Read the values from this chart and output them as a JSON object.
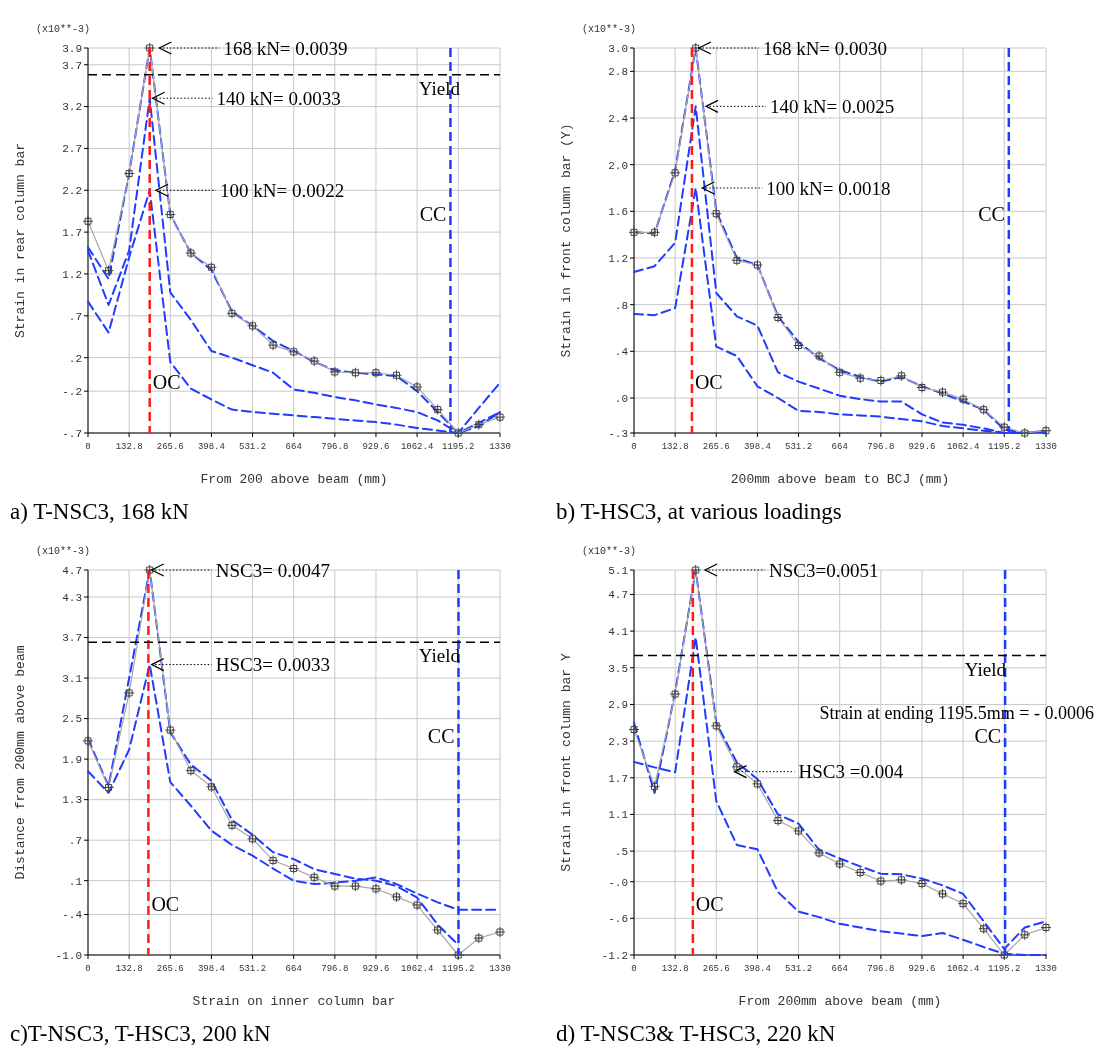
{
  "chart_data": [
    {
      "type": "line",
      "title": "a) T-NSC3, 168 kN",
      "xlabel": "From 200 above beam (mm)",
      "ylabel": "Strain in rear column bar",
      "x": [
        0,
        66.4,
        132.8,
        199.2,
        265.6,
        332,
        398.4,
        464.8,
        531.2,
        597.6,
        664,
        730.4,
        796.8,
        863.2,
        929.6,
        996,
        1062.4,
        1128.8,
        1195.2,
        1261.6,
        1330
      ],
      "xlim": [
        0,
        1330
      ],
      "xticks": [
        0,
        132.8,
        265.6,
        398.4,
        531.2,
        664,
        796.8,
        929.6,
        1062.4,
        1195.2,
        1330
      ],
      "ylim": [
        -0.7,
        3.9
      ],
      "yticks": [
        {
          "value": -0.7,
          "label": "-.7"
        },
        {
          "value": -0.2,
          "label": "-.2"
        },
        {
          "value": 0.2,
          "label": ".2"
        },
        {
          "value": 0.7,
          "label": ".7"
        },
        1.2,
        1.7,
        2.2,
        2.7,
        3.2,
        3.7,
        3.9
      ],
      "grid": true,
      "series": [
        {
          "color": "#1f3cff",
          "line_style": "dashed",
          "marker": "none",
          "values": [
            1.52,
            1.14,
            2.4,
            3.9,
            1.91,
            1.45,
            1.25,
            0.75,
            0.58,
            0.4,
            0.28,
            0.15,
            0.05,
            0.02,
            0.0,
            -0.02,
            -0.2,
            -0.45,
            -0.7,
            -0.62,
            -0.45
          ]
        },
        {
          "color": "#1f3cff",
          "line_style": "dashed",
          "marker": "none",
          "values": [
            1.48,
            0.83,
            1.48,
            3.3,
            0.98,
            0.65,
            0.28,
            0.2,
            0.11,
            0.02,
            -0.18,
            -0.22,
            -0.27,
            -0.31,
            -0.36,
            -0.4,
            -0.45,
            -0.55,
            -0.7,
            -0.4,
            -0.1
          ]
        },
        {
          "color": "#1f3cff",
          "line_style": "dashed",
          "marker": "none",
          "values": [
            0.87,
            0.5,
            1.4,
            2.2,
            0.15,
            -0.17,
            -0.3,
            -0.42,
            -0.45,
            -0.47,
            -0.49,
            -0.51,
            -0.53,
            -0.55,
            -0.57,
            -0.6,
            -0.64,
            -0.67,
            -0.7,
            -0.58,
            -0.45
          ]
        },
        {
          "color": "#a6a6a6",
          "line_style": "solid",
          "marker": "cross",
          "values": [
            1.83,
            1.24,
            2.4,
            3.9,
            1.91,
            1.45,
            1.28,
            0.73,
            0.58,
            0.35,
            0.27,
            0.16,
            0.03,
            0.02,
            0.02,
            -0.01,
            -0.15,
            -0.42,
            -0.7,
            -0.6,
            -0.51
          ]
        }
      ],
      "ref_lines": [
        {
          "axis": "x",
          "value": 199.2,
          "label": "OC",
          "color": "#ff1a1a",
          "line_style": "dashed"
        },
        {
          "axis": "x",
          "value": 1170,
          "label": "CC",
          "color": "#1f3cff",
          "line_style": "dashed"
        },
        {
          "axis": "y",
          "value": 3.58,
          "label": "Yield",
          "color": "#000000",
          "line_style": "dashed"
        }
      ],
      "annotations": [
        "(x10**-3)",
        {
          "text": "168 kN= 0.0039",
          "x": 224,
          "y": 3.9
        },
        {
          "text": "140 kN= 0.0033",
          "x": 202,
          "y": 3.3
        },
        {
          "text": "100 kN= 0.0022",
          "x": 213,
          "y": 2.2
        }
      ]
    },
    {
      "type": "line",
      "title": "b) T-HSC3, at various loadings",
      "xlabel": "200mm above beam to BCJ (mm)",
      "ylabel": "Strain in front column bar (Y)",
      "x": [
        0,
        66.4,
        132.8,
        199.2,
        265.6,
        332,
        398.4,
        464.8,
        531.2,
        597.6,
        664,
        730.4,
        796.8,
        863.2,
        929.6,
        996,
        1062.4,
        1128.8,
        1195.2,
        1261.6,
        1330
      ],
      "xlim": [
        0,
        1330
      ],
      "xticks": [
        0,
        132.8,
        265.6,
        398.4,
        531.2,
        664,
        796.8,
        929.6,
        1062.4,
        1195.2,
        1330
      ],
      "ylim": [
        -0.3,
        3.0
      ],
      "yticks": [
        {
          "value": -0.3,
          "label": "-.3"
        },
        {
          "value": 0,
          "label": ".0"
        },
        {
          "value": 0.4,
          "label": ".4"
        },
        {
          "value": 0.8,
          "label": ".8"
        },
        1.2,
        1.6,
        {
          "value": 2,
          "label": "2.0"
        },
        2.4,
        2.8,
        {
          "value": 3,
          "label": "3.0"
        }
      ],
      "grid": true,
      "series": [
        {
          "color": "#1f3cff",
          "line_style": "dashed",
          "marker": "none",
          "values": [
            1.42,
            1.41,
            1.95,
            3.0,
            1.6,
            1.2,
            1.14,
            0.7,
            0.48,
            0.34,
            0.24,
            0.18,
            0.14,
            0.18,
            0.1,
            0.04,
            -0.03,
            -0.1,
            -0.27,
            -0.3,
            -0.28
          ]
        },
        {
          "color": "#1f3cff",
          "line_style": "dashed",
          "marker": "none",
          "values": [
            1.08,
            1.13,
            1.33,
            2.5,
            0.9,
            0.7,
            0.62,
            0.22,
            0.14,
            0.08,
            0.02,
            -0.01,
            -0.03,
            -0.03,
            -0.14,
            -0.21,
            -0.23,
            -0.26,
            -0.3,
            -0.3,
            -0.29
          ]
        },
        {
          "color": "#1f3cff",
          "line_style": "dashed",
          "marker": "none",
          "values": [
            0.72,
            0.71,
            0.77,
            1.8,
            0.44,
            0.36,
            0.1,
            0.0,
            -0.11,
            -0.12,
            -0.14,
            -0.15,
            -0.16,
            -0.18,
            -0.2,
            -0.24,
            -0.26,
            -0.28,
            -0.3,
            -0.3,
            -0.29
          ]
        },
        {
          "color": "#a6a6a6",
          "line_style": "solid",
          "marker": "cross",
          "values": [
            1.42,
            1.42,
            1.93,
            3.0,
            1.58,
            1.18,
            1.14,
            0.69,
            0.45,
            0.36,
            0.22,
            0.17,
            0.15,
            0.19,
            0.09,
            0.05,
            -0.01,
            -0.1,
            -0.25,
            -0.3,
            -0.28
          ]
        }
      ],
      "ref_lines": [
        {
          "axis": "x",
          "value": 187,
          "label": "OC",
          "color": "#ff1a1a",
          "line_style": "dashed"
        },
        {
          "axis": "x",
          "value": 1210,
          "label": "CC",
          "color": "#1f3cff",
          "line_style": "dashed"
        }
      ],
      "annotations": [
        "(x10**-3)",
        {
          "text": "168 kN= 0.0030",
          "x": 203,
          "y": 3.0
        },
        {
          "text": "140 kN= 0.0025",
          "x": 226,
          "y": 2.5
        },
        {
          "text": "100 kN= 0.0018",
          "x": 214,
          "y": 1.8
        }
      ]
    },
    {
      "type": "line",
      "title": "c)T-NSC3, T-HSC3, 200 kN",
      "xlabel": "Strain on inner column bar",
      "ylabel": "Distance from 200mm above beam",
      "x": [
        0,
        66.4,
        132.8,
        199.2,
        265.6,
        332,
        398.4,
        464.8,
        531.2,
        597.6,
        664,
        730.4,
        796.8,
        863.2,
        929.6,
        996,
        1062.4,
        1128.8,
        1195.2,
        1261.6,
        1330
      ],
      "xlim": [
        0,
        1330
      ],
      "xticks": [
        0,
        132.8,
        265.6,
        398.4,
        531.2,
        664,
        796.8,
        929.6,
        1062.4,
        1195.2,
        1330
      ],
      "ylim": [
        -1.0,
        4.7
      ],
      "yticks": [
        {
          "value": -1,
          "label": "-1.0"
        },
        {
          "value": -0.4,
          "label": "-.4"
        },
        {
          "value": 0.1,
          "label": ".1"
        },
        {
          "value": 0.7,
          "label": ".7"
        },
        1.3,
        1.9,
        2.5,
        3.1,
        3.7,
        4.3,
        4.7
      ],
      "grid": true,
      "series": [
        {
          "color": "#1f3cff",
          "line_style": "dashed",
          "marker": "none",
          "values": [
            2.2,
            1.5,
            3.1,
            4.7,
            2.3,
            1.82,
            1.58,
            1.0,
            0.78,
            0.52,
            0.42,
            0.27,
            0.2,
            0.13,
            0.1,
            0.02,
            -0.15,
            -0.55,
            -0.85,
            null,
            null
          ]
        },
        {
          "color": "#1f3cff",
          "line_style": "dashed",
          "marker": "none",
          "values": [
            1.72,
            1.4,
            2.04,
            3.3,
            1.56,
            1.21,
            0.84,
            0.63,
            0.47,
            0.28,
            0.1,
            0.05,
            0.07,
            0.1,
            0.15,
            0.05,
            -0.09,
            -0.22,
            -0.33,
            -0.33,
            -0.33
          ]
        },
        {
          "color": "#a6a6a6",
          "line_style": "solid",
          "marker": "cross",
          "values": [
            2.17,
            1.48,
            2.88,
            4.7,
            2.33,
            1.73,
            1.49,
            0.92,
            0.72,
            0.4,
            0.28,
            0.15,
            0.02,
            0.02,
            -0.02,
            -0.14,
            -0.26,
            -0.63,
            -1.0,
            -0.75,
            -0.66
          ]
        }
      ],
      "ref_lines": [
        {
          "axis": "x",
          "value": 195,
          "label": "OC",
          "color": "#ff1a1a",
          "line_style": "dashed"
        },
        {
          "axis": "x",
          "value": 1196,
          "label": "CC",
          "color": "#1f3cff",
          "line_style": "dashed"
        },
        {
          "axis": "y",
          "value": 3.63,
          "label": "Yield",
          "color": "#000000",
          "line_style": "dashed"
        }
      ],
      "annotations": [
        "(x10**-3)",
        {
          "text": "NSC3= 0.0047",
          "x": 199.2,
          "y": 4.7
        },
        {
          "text": "HSC3= 0.0033",
          "x": 199.2,
          "y": 3.3
        }
      ]
    },
    {
      "type": "line",
      "title": "d) T-NSC3& T-HSC3, 220 kN",
      "xlabel": "From 200mm above beam (mm)",
      "ylabel": "Strain in front column bar Y",
      "x": [
        0,
        66.4,
        132.8,
        199.2,
        265.6,
        332,
        398.4,
        464.8,
        531.2,
        597.6,
        664,
        730.4,
        796.8,
        863.2,
        929.6,
        996,
        1062.4,
        1128.8,
        1195.2,
        1261.6,
        1330
      ],
      "xlim": [
        0,
        1330
      ],
      "xticks": [
        0,
        132.8,
        265.6,
        398.4,
        531.2,
        664,
        796.8,
        929.6,
        1062.4,
        1195.2,
        1330
      ],
      "ylim": [
        -1.2,
        5.1
      ],
      "yticks": [
        -1.2,
        {
          "value": -0.6,
          "label": "-.6"
        },
        {
          "value": 0,
          "label": "-.0"
        },
        {
          "value": 0.5,
          "label": ".5"
        },
        1.1,
        1.7,
        2.3,
        2.9,
        3.5,
        4.1,
        4.7,
        5.1
      ],
      "grid": true,
      "series": [
        {
          "color": "#1f3cff",
          "line_style": "dashed",
          "marker": "none",
          "values": [
            2.6,
            1.45,
            3.1,
            5.1,
            2.6,
            1.95,
            1.68,
            1.1,
            0.95,
            0.52,
            0.38,
            0.25,
            0.13,
            0.12,
            0.05,
            -0.06,
            -0.2,
            -0.65,
            -1.1,
            -0.75,
            -0.65
          ]
        },
        {
          "color": "#1f3cff",
          "line_style": "dashed",
          "marker": "none",
          "values": [
            1.96,
            1.87,
            1.79,
            4.0,
            1.32,
            0.6,
            0.53,
            -0.17,
            -0.49,
            -0.58,
            -0.69,
            -0.75,
            -0.81,
            -0.85,
            -0.89,
            -0.84,
            -0.95,
            -1.07,
            -1.18,
            -1.2,
            -1.2
          ]
        },
        {
          "color": "#a6a6a6",
          "line_style": "solid",
          "marker": "cross",
          "values": [
            2.49,
            1.56,
            3.07,
            5.1,
            2.55,
            1.88,
            1.6,
            1.0,
            0.83,
            0.47,
            0.29,
            0.15,
            0.01,
            0.03,
            -0.03,
            -0.2,
            -0.36,
            -0.77,
            -1.2,
            -0.87,
            -0.75
          ]
        }
      ],
      "ref_lines": [
        {
          "axis": "x",
          "value": 190,
          "label": "OC",
          "color": "#ff1a1a",
          "line_style": "dashed"
        },
        {
          "axis": "x",
          "value": 1198,
          "label": "CC",
          "color": "#1f3cff",
          "line_style": "dashed"
        },
        {
          "axis": "y",
          "value": 3.7,
          "label": "Yield",
          "color": "#000000",
          "line_style": "dashed"
        }
      ],
      "annotations": [
        "(x10**-3)",
        {
          "text": "NSC3=0.0051",
          "x": 223,
          "y": 5.1
        },
        {
          "text": "HSC3 =0.004",
          "x": 318,
          "y": 1.8
        },
        "Strain at ending 1195.5mm = - 0.0006"
      ]
    }
  ]
}
